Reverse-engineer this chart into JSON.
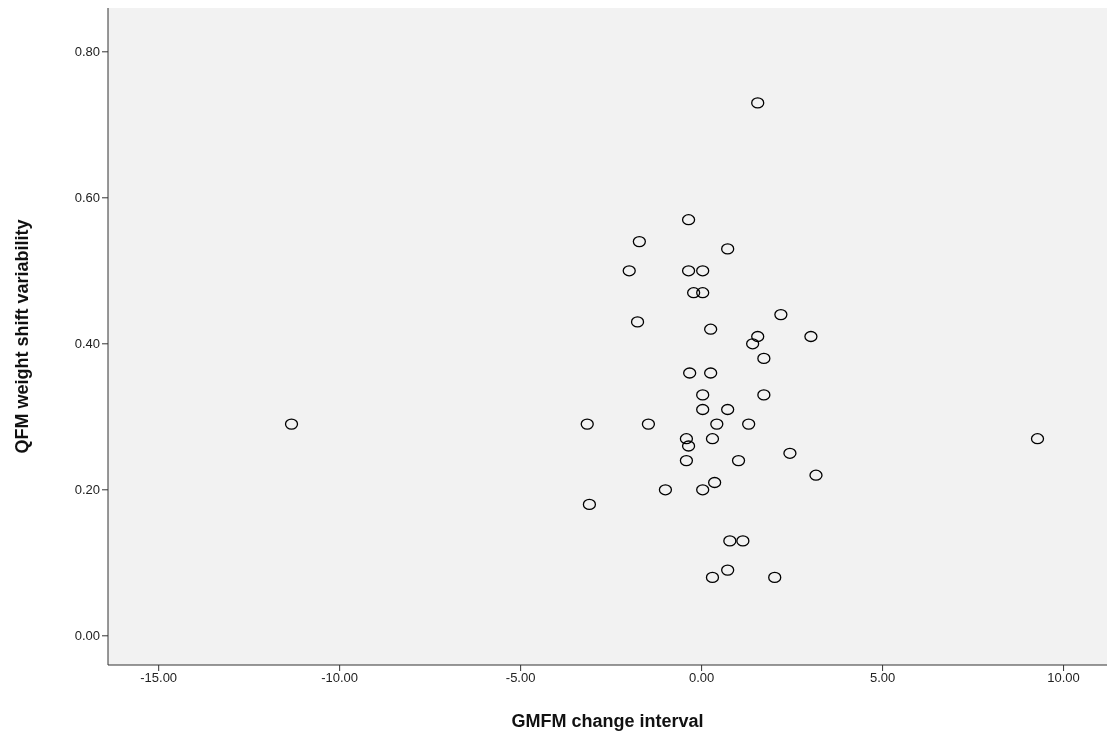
{
  "chart_data": {
    "type": "scatter",
    "xlabel": "GMFM change interval",
    "ylabel": "QFM weight shift variability",
    "x": [
      -11.33,
      1.55,
      -0.36,
      -1.72,
      0.72,
      -2.0,
      -0.36,
      0.03,
      -0.22,
      0.03,
      2.19,
      -1.77,
      0.25,
      1.55,
      3.02,
      1.41,
      1.72,
      -0.33,
      0.25,
      0.03,
      1.72,
      0.03,
      0.72,
      -3.16,
      -1.47,
      0.42,
      1.3,
      -0.42,
      0.3,
      9.28,
      -0.36,
      -0.42,
      1.02,
      2.44,
      3.16,
      0.36,
      -1.0,
      0.03,
      -3.1,
      0.78,
      1.14,
      0.72,
      0.3,
      2.02
    ],
    "values": [
      0.29,
      0.73,
      0.57,
      0.54,
      0.53,
      0.5,
      0.5,
      0.5,
      0.47,
      0.47,
      0.44,
      0.43,
      0.42,
      0.41,
      0.41,
      0.4,
      0.38,
      0.36,
      0.36,
      0.33,
      0.33,
      0.31,
      0.31,
      0.29,
      0.29,
      0.29,
      0.29,
      0.27,
      0.27,
      0.27,
      0.26,
      0.24,
      0.24,
      0.25,
      0.22,
      0.21,
      0.2,
      0.2,
      0.18,
      0.13,
      0.13,
      0.09,
      0.08,
      0.08
    ],
    "color": "#000000",
    "marker": "circle",
    "grid": false,
    "xlim": [
      -16.4,
      11.2
    ],
    "xticks": [
      {
        "value": -15,
        "label": "-15.00"
      },
      {
        "value": -10,
        "label": "-10.00"
      },
      {
        "value": -5,
        "label": "-5.00"
      },
      {
        "value": 0,
        "label": "0.00"
      },
      {
        "value": 5,
        "label": "5.00"
      },
      {
        "value": 10,
        "label": "10.00"
      }
    ],
    "ylim": [
      -0.04,
      0.86
    ],
    "yticks": [
      {
        "value": 0,
        "label": "0.00"
      },
      {
        "value": 0.2,
        "label": "0.20"
      },
      {
        "value": 0.4,
        "label": "0.40"
      },
      {
        "value": 0.6,
        "label": "0.60"
      },
      {
        "value": 0.8,
        "label": "0.80"
      }
    ]
  }
}
